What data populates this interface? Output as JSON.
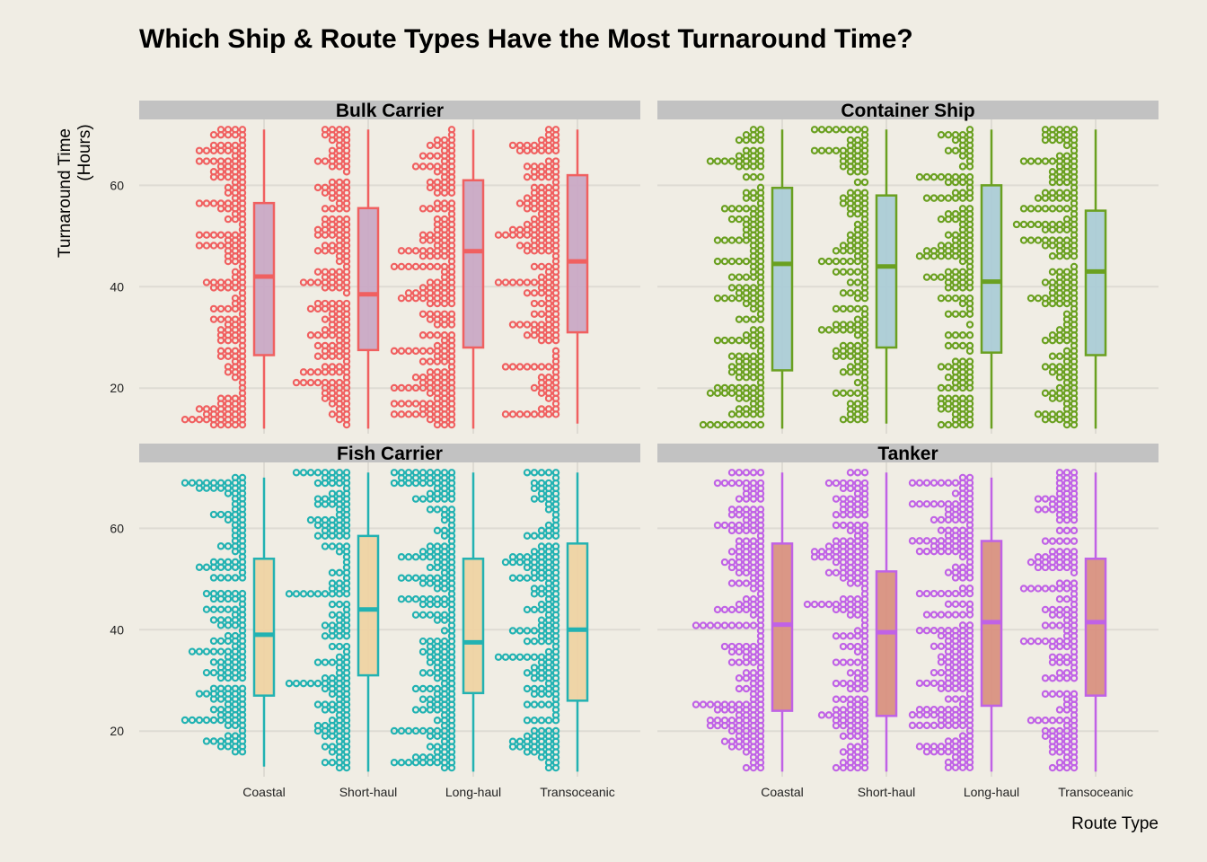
{
  "chart_data": {
    "type": "boxplot-dotplot",
    "title": "Which Ship & Route Types Have the Most Turnaround Time?",
    "xlabel": "Route Type",
    "ylabel": [
      "Turnaround Time",
      "(Hours)"
    ],
    "ylim": [
      11,
      73
    ],
    "yticks": [
      20,
      40,
      60
    ],
    "categories": [
      "Coastal",
      "Short-haul",
      "Long-haul",
      "Transoceanic"
    ],
    "grid": true,
    "panels": [
      {
        "name": "Bulk Carrier",
        "color": "#f06060",
        "fill": "#c9a7c4",
        "boxes": [
          {
            "min": 12,
            "q1": 26.5,
            "median": 42,
            "q3": 56.5,
            "max": 71
          },
          {
            "min": 12,
            "q1": 27.5,
            "median": 38.5,
            "q3": 55.5,
            "max": 71
          },
          {
            "min": 12,
            "q1": 28,
            "median": 47,
            "q3": 61,
            "max": 71
          },
          {
            "min": 13,
            "q1": 31,
            "median": 45,
            "q3": 62,
            "max": 71
          }
        ]
      },
      {
        "name": "Container Ship",
        "color": "#6aa020",
        "fill": "#a9ccd6",
        "boxes": [
          {
            "min": 12,
            "q1": 23.5,
            "median": 44.5,
            "q3": 59.5,
            "max": 71
          },
          {
            "min": 13,
            "q1": 28,
            "median": 44,
            "q3": 58,
            "max": 71
          },
          {
            "min": 12,
            "q1": 27,
            "median": 41,
            "q3": 60,
            "max": 71
          },
          {
            "min": 12,
            "q1": 26.5,
            "median": 43,
            "q3": 55,
            "max": 71
          }
        ]
      },
      {
        "name": "Fish Carrier",
        "color": "#22b2b2",
        "fill": "#efd2a2",
        "boxes": [
          {
            "min": 13,
            "q1": 27,
            "median": 39,
            "q3": 54,
            "max": 70
          },
          {
            "min": 12,
            "q1": 31,
            "median": 44,
            "q3": 58.5,
            "max": 71
          },
          {
            "min": 12,
            "q1": 27.5,
            "median": 37.5,
            "q3": 54,
            "max": 71
          },
          {
            "min": 12,
            "q1": 26,
            "median": 40,
            "q3": 57,
            "max": 71
          }
        ]
      },
      {
        "name": "Tanker",
        "color": "#c062e6",
        "fill": "#d88f7e",
        "boxes": [
          {
            "min": 12,
            "q1": 24,
            "median": 41,
            "q3": 57,
            "max": 71
          },
          {
            "min": 12,
            "q1": 23,
            "median": 39.5,
            "q3": 51.5,
            "max": 71
          },
          {
            "min": 12,
            "q1": 25,
            "median": 41.5,
            "q3": 57.5,
            "max": 70
          },
          {
            "min": 12,
            "q1": 27,
            "median": 41.5,
            "q3": 54,
            "max": 71
          }
        ]
      }
    ]
  }
}
